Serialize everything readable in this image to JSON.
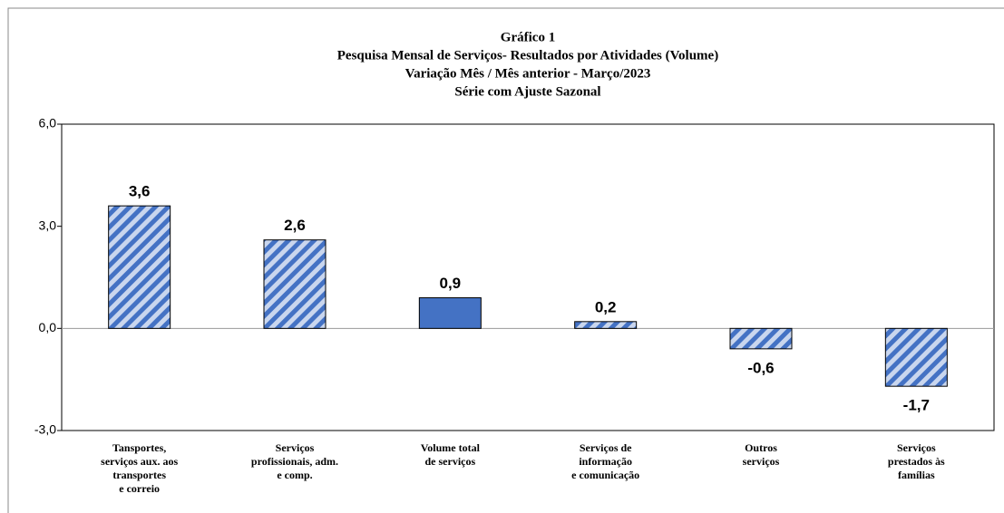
{
  "chart_data": {
    "type": "bar",
    "title": "Gráfico 1",
    "subtitle": [
      "Pesquisa Mensal de Serviços- Resultados por Atividades (Volume)",
      "Variação Mês / Mês anterior - Março/2023",
      "Série com Ajuste Sazonal"
    ],
    "categories": [
      "Tansportes,\nserviços aux. aos\ntransportes\ne correio",
      "Serviços\nprofissionais,  adm.\ne comp.",
      "Volume total\nde serviços",
      "Serviços de\ninformação\ne comunicação",
      "Outros\nserviços",
      "Serviços\nprestados às\nfamílias"
    ],
    "values": [
      3.6,
      2.6,
      0.9,
      0.2,
      -0.6,
      -1.7
    ],
    "value_labels": [
      "3,6",
      "2,6",
      "0,9",
      "0,2",
      "-0,6",
      "-1,7"
    ],
    "colors": [
      "#4472c4",
      "#4472c4",
      "#4472c4",
      "#4472c4",
      "#4472c4",
      "#4472c4"
    ],
    "hatched": [
      true,
      true,
      false,
      true,
      true,
      true
    ],
    "ylim": [
      -3,
      6
    ],
    "yticks": [
      {
        "value": -3,
        "label": "-3,0"
      },
      {
        "value": 0,
        "label": "0,0"
      },
      {
        "value": 3,
        "label": "3,0"
      },
      {
        "value": 6,
        "label": "6,0"
      }
    ],
    "grid": false
  }
}
